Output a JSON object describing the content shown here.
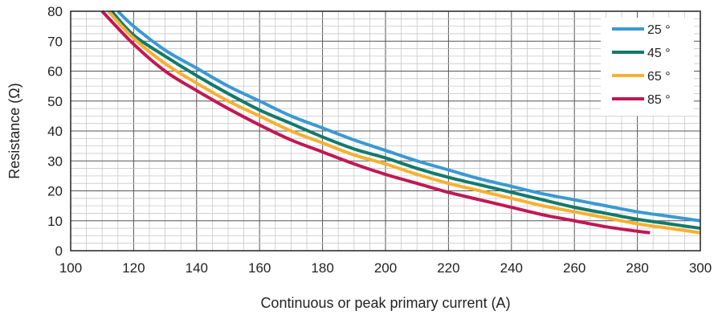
{
  "chart_data": {
    "type": "line",
    "title": "",
    "xlabel": "Continuous or peak primary current (A)",
    "ylabel": "Resistance (Ω)",
    "xlim": [
      100,
      300
    ],
    "ylim": [
      0,
      80
    ],
    "x_ticks": [
      "100",
      "120",
      "140",
      "160",
      "180",
      "200",
      "220",
      "240",
      "260",
      "280",
      "300"
    ],
    "y_ticks": [
      "0",
      "10",
      "20",
      "30",
      "40",
      "50",
      "60",
      "70",
      "80"
    ],
    "grid": true,
    "legend_position": "top-right",
    "series": [
      {
        "name": "25 °",
        "color": "#3a9ad1",
        "x": [
          115,
          120,
          130,
          140,
          150,
          160,
          170,
          180,
          190,
          200,
          210,
          220,
          230,
          240,
          250,
          260,
          270,
          280,
          290,
          300
        ],
        "y": [
          80,
          75,
          67,
          61,
          55,
          50,
          45,
          41,
          37,
          33.5,
          30,
          27,
          24,
          21.5,
          19,
          17,
          15,
          13,
          11.5,
          10
        ]
      },
      {
        "name": "45 °",
        "color": "#137a6a",
        "x": [
          113,
          120,
          130,
          140,
          150,
          160,
          170,
          180,
          190,
          200,
          210,
          220,
          230,
          240,
          250,
          260,
          270,
          280,
          290,
          300
        ],
        "y": [
          80,
          72,
          65,
          58.5,
          52.5,
          47,
          42.5,
          38,
          34,
          31,
          27.5,
          24.5,
          22,
          19.5,
          17,
          14.5,
          12.5,
          10.5,
          9,
          7.5
        ]
      },
      {
        "name": "65 °",
        "color": "#f7b030",
        "x": [
          112,
          120,
          130,
          140,
          150,
          160,
          170,
          180,
          190,
          200,
          210,
          220,
          230,
          240,
          250,
          260,
          270,
          280,
          290,
          300
        ],
        "y": [
          80,
          71,
          62.5,
          56,
          50,
          45,
          40,
          36,
          32,
          29,
          25.5,
          22.5,
          20,
          17.5,
          15,
          13,
          11,
          9,
          7.5,
          6
        ]
      },
      {
        "name": "85 °",
        "color": "#c11854",
        "x": [
          110,
          120,
          130,
          140,
          150,
          160,
          170,
          180,
          190,
          200,
          210,
          220,
          230,
          240,
          250,
          260,
          270,
          280,
          284
        ],
        "y": [
          80,
          69,
          60,
          53.5,
          47.5,
          42,
          37,
          33,
          29,
          25.5,
          22.5,
          19.5,
          17,
          14.5,
          12,
          10,
          8,
          6.5,
          6
        ]
      }
    ]
  }
}
